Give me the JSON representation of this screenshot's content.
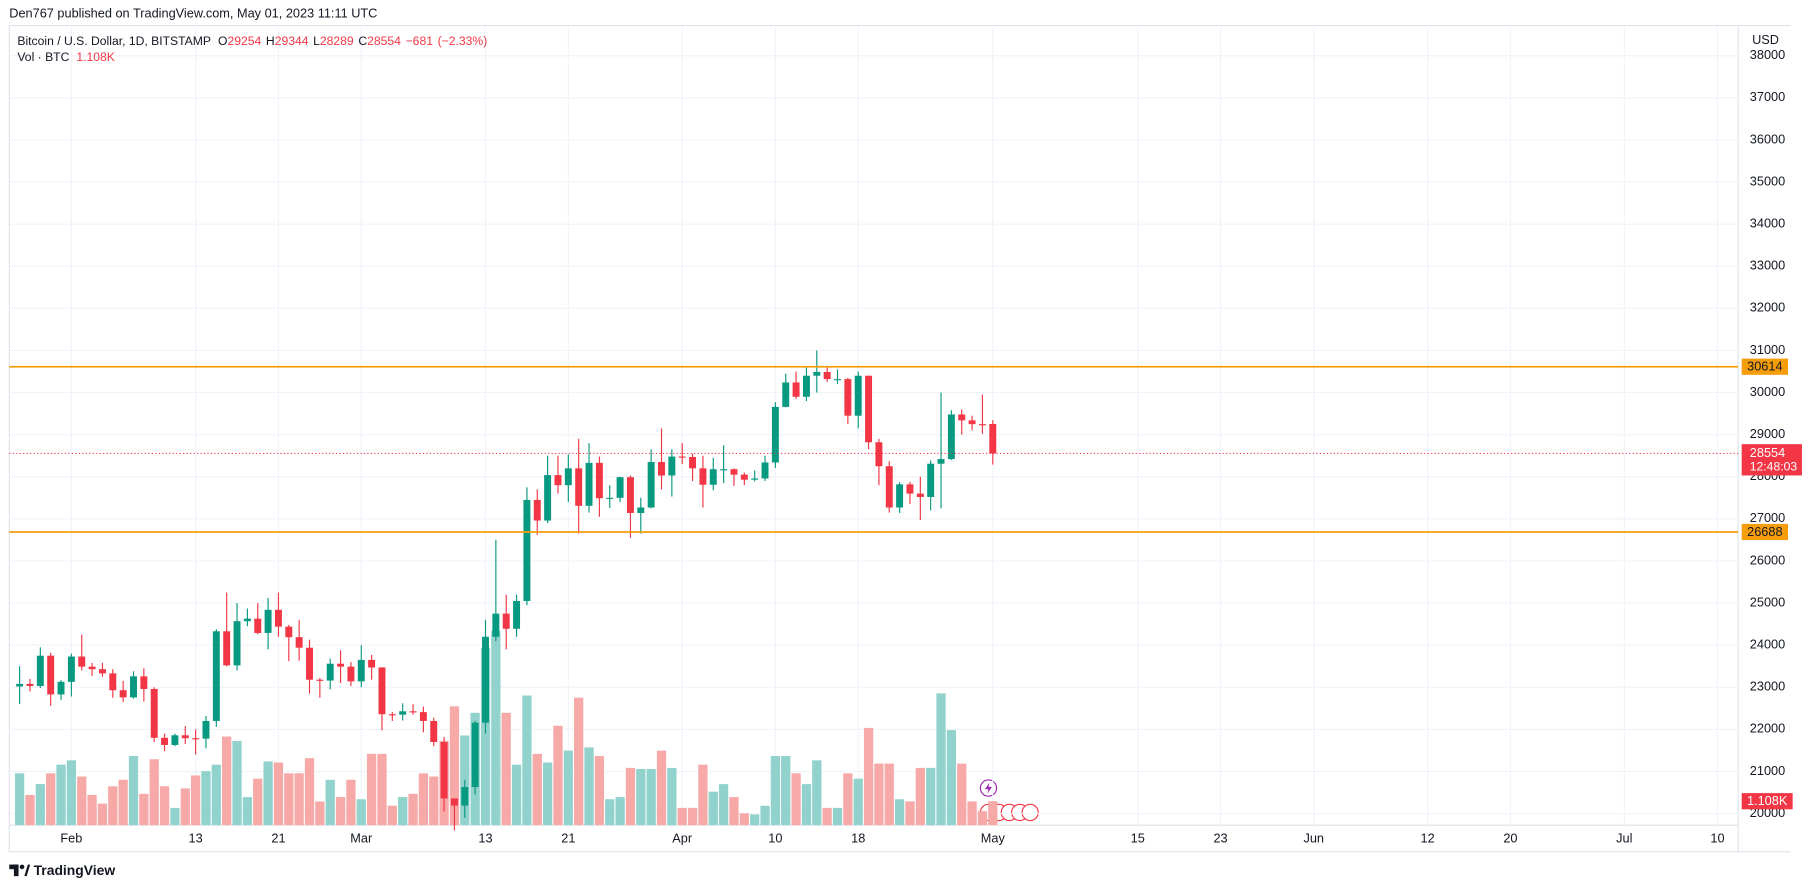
{
  "chart_data": {
    "type": "candlestick",
    "header": "Den767 published on TradingView.com, May 01, 2023 11:11 UTC",
    "title": "Bitcoin / U.S. Dollar, 1D, BITSTAMP",
    "legend_keys": [
      "O",
      "H",
      "L",
      "C"
    ],
    "change": {
      "value": -681,
      "label": "−681"
    },
    "change_pct": {
      "value": -2.33,
      "label": "(−2.33%)"
    },
    "countdown": "12:48:03",
    "y_unit": "USD",
    "footer": "TradingView",
    "up_color": "#089981",
    "down_color": "#f23645",
    "volume_up_color": "#92d2cc",
    "volume_down_color": "#f7a9a7",
    "grid": true,
    "x": [
      "2023-01-27",
      "2023-01-28",
      "2023-01-29",
      "2023-01-30",
      "2023-01-31",
      "2023-02-01",
      "2023-02-02",
      "2023-02-03",
      "2023-02-04",
      "2023-02-05",
      "2023-02-06",
      "2023-02-07",
      "2023-02-08",
      "2023-02-09",
      "2023-02-10",
      "2023-02-11",
      "2023-02-12",
      "2023-02-13",
      "2023-02-14",
      "2023-02-15",
      "2023-02-16",
      "2023-02-17",
      "2023-02-18",
      "2023-02-19",
      "2023-02-20",
      "2023-02-21",
      "2023-02-22",
      "2023-02-23",
      "2023-02-24",
      "2023-02-25",
      "2023-02-26",
      "2023-02-27",
      "2023-02-28",
      "2023-03-01",
      "2023-03-02",
      "2023-03-03",
      "2023-03-04",
      "2023-03-05",
      "2023-03-06",
      "2023-03-07",
      "2023-03-08",
      "2023-03-09",
      "2023-03-10",
      "2023-03-11",
      "2023-03-12",
      "2023-03-13",
      "2023-03-14",
      "2023-03-15",
      "2023-03-16",
      "2023-03-17",
      "2023-03-18",
      "2023-03-19",
      "2023-03-20",
      "2023-03-21",
      "2023-03-22",
      "2023-03-23",
      "2023-03-24",
      "2023-03-25",
      "2023-03-26",
      "2023-03-27",
      "2023-03-28",
      "2023-03-29",
      "2023-03-30",
      "2023-03-31",
      "2023-04-01",
      "2023-04-02",
      "2023-04-03",
      "2023-04-04",
      "2023-04-05",
      "2023-04-06",
      "2023-04-07",
      "2023-04-08",
      "2023-04-09",
      "2023-04-10",
      "2023-04-11",
      "2023-04-12",
      "2023-04-13",
      "2023-04-14",
      "2023-04-15",
      "2023-04-16",
      "2023-04-17",
      "2023-04-18",
      "2023-04-19",
      "2023-04-20",
      "2023-04-21",
      "2023-04-22",
      "2023-04-23",
      "2023-04-24",
      "2023-04-25",
      "2023-04-26",
      "2023-04-27",
      "2023-04-28",
      "2023-04-29",
      "2023-04-30",
      "2023-05-01"
    ],
    "open": [
      23020,
      23080,
      23030,
      23750,
      22830,
      23130,
      23730,
      23490,
      23430,
      23330,
      22930,
      22760,
      23260,
      22960,
      21800,
      21630,
      21860,
      21790,
      21780,
      22200,
      24330,
      23520,
      24570,
      24630,
      24290,
      24840,
      24440,
      24190,
      23940,
      23180,
      23160,
      23560,
      23490,
      23140,
      23650,
      23470,
      22360,
      22350,
      22430,
      22410,
      22200,
      21700,
      20360,
      20190,
      20630,
      22160,
      24200,
      24750,
      24390,
      25050,
      27450,
      26960,
      28040,
      27800,
      28200,
      27310,
      28330,
      27490,
      27500,
      27990,
      27140,
      27270,
      28350,
      28030,
      28480,
      28470,
      28200,
      27810,
      28180,
      28180,
      28050,
      27930,
      27960,
      28340,
      29660,
      30240,
      29900,
      30400,
      30490,
      30320,
      30320,
      29450,
      30400,
      28820,
      28250,
      27270,
      27820,
      27600,
      27520,
      28310,
      28420,
      29480,
      29340,
      29250,
      29254
    ],
    "high": [
      23500,
      23200,
      23950,
      23820,
      23170,
      23800,
      24250,
      23580,
      23580,
      23430,
      23150,
      23380,
      23450,
      23000,
      21900,
      21900,
      22080,
      22000,
      22320,
      24380,
      25250,
      25000,
      24870,
      25000,
      25120,
      25250,
      24480,
      24600,
      24130,
      23220,
      23680,
      23880,
      23600,
      24000,
      23770,
      23480,
      22410,
      22620,
      22600,
      22540,
      22280,
      21820,
      20360,
      20800,
      22200,
      24600,
      26500,
      25200,
      25200,
      27750,
      27700,
      28500,
      28500,
      28530,
      28900,
      28800,
      28480,
      27800,
      28000,
      28030,
      27500,
      28650,
      29150,
      28650,
      28800,
      28550,
      28500,
      28450,
      28750,
      28200,
      28100,
      28150,
      28500,
      29770,
      30450,
      30500,
      30600,
      31000,
      30600,
      30550,
      30350,
      30500,
      30400,
      28900,
      28370,
      27870,
      27880,
      28000,
      28390,
      30000,
      29580,
      29600,
      29450,
      29950,
      29344
    ],
    "low": [
      22600,
      22900,
      22980,
      22560,
      22700,
      22780,
      23400,
      23270,
      23250,
      22750,
      22650,
      22730,
      22660,
      21700,
      21480,
      21600,
      21650,
      21400,
      21550,
      22060,
      23500,
      23400,
      24450,
      24260,
      23900,
      24200,
      23620,
      23630,
      22850,
      22750,
      22950,
      23100,
      23030,
      23000,
      23180,
      21980,
      22200,
      22210,
      22350,
      21930,
      21600,
      20050,
      19600,
      19900,
      20450,
      21900,
      24100,
      23900,
      24200,
      24950,
      26620,
      26900,
      27600,
      27400,
      26650,
      27150,
      27050,
      27260,
      27400,
      26550,
      26650,
      27250,
      27700,
      27530,
      28300,
      27900,
      27270,
      27680,
      27850,
      27780,
      27800,
      27890,
      27900,
      28210,
      29650,
      29850,
      29800,
      30000,
      30250,
      30200,
      29250,
      29150,
      28650,
      27800,
      27150,
      27140,
      27350,
      26970,
      27200,
      27250,
      28400,
      29000,
      29100,
      29020,
      28289
    ],
    "close": [
      23080,
      23030,
      23750,
      22830,
      23130,
      23730,
      23490,
      23430,
      23330,
      22930,
      22760,
      23260,
      22960,
      21800,
      21630,
      21860,
      21790,
      21780,
      22200,
      24330,
      23520,
      24570,
      24630,
      24290,
      24840,
      24440,
      24190,
      23940,
      23180,
      23160,
      23560,
      23490,
      23140,
      23650,
      23470,
      22360,
      22350,
      22430,
      22410,
      22200,
      21700,
      20360,
      20190,
      20630,
      22160,
      24200,
      24750,
      24390,
      25050,
      27450,
      26960,
      28040,
      27800,
      28200,
      27310,
      28330,
      27490,
      27500,
      27990,
      27140,
      27270,
      28350,
      28030,
      28480,
      28470,
      28200,
      27810,
      28180,
      28180,
      28050,
      27930,
      27960,
      28340,
      29660,
      30240,
      29900,
      30400,
      30490,
      30320,
      30320,
      29450,
      30400,
      28820,
      28250,
      27270,
      27820,
      27600,
      27520,
      28310,
      28420,
      29480,
      29340,
      29250,
      29235,
      28554
    ],
    "volume": {
      "name": "Vol · BTC",
      "last_label": "1.108K",
      "values": [
        2400,
        1400,
        1900,
        2400,
        2800,
        3000,
        2250,
        1400,
        1000,
        1800,
        2100,
        3200,
        1450,
        3050,
        1800,
        800,
        1700,
        2300,
        2500,
        2800,
        4100,
        3900,
        1300,
        2150,
        2950,
        2900,
        2400,
        2400,
        3100,
        1100,
        2100,
        1300,
        2100,
        1200,
        3300,
        3300,
        900,
        1300,
        1450,
        2400,
        2250,
        3900,
        5500,
        4150,
        5200,
        8200,
        9000,
        5200,
        2800,
        6000,
        3300,
        2900,
        4600,
        3450,
        5900,
        3600,
        3200,
        1200,
        1300,
        2650,
        2600,
        2600,
        3450,
        2650,
        800,
        800,
        2800,
        1550,
        1900,
        1300,
        550,
        500,
        900,
        3200,
        3200,
        2400,
        1900,
        3000,
        800,
        800,
        2400,
        2150,
        4500,
        2850,
        2850,
        1200,
        1100,
        2650,
        2650,
        6100,
        4400,
        2850,
        1100,
        650,
        1108
      ]
    },
    "hlines": [
      {
        "value": 30614,
        "color": "#f59d0b"
      },
      {
        "value": 26688,
        "color": "#f59d0b"
      }
    ],
    "xlim": [
      "2023-01-26",
      "2023-07-12"
    ],
    "xticks": [
      {
        "value": "2023-02-01",
        "label": "Feb"
      },
      {
        "value": "2023-02-13",
        "label": "13"
      },
      {
        "value": "2023-02-21",
        "label": "21"
      },
      {
        "value": "2023-03-01",
        "label": "Mar"
      },
      {
        "value": "2023-03-13",
        "label": "13"
      },
      {
        "value": "2023-03-21",
        "label": "21"
      },
      {
        "value": "2023-04-01",
        "label": "Apr"
      },
      {
        "value": "2023-04-10",
        "label": "10"
      },
      {
        "value": "2023-04-18",
        "label": "18"
      },
      {
        "value": "2023-05-01",
        "label": "May"
      },
      {
        "value": "2023-05-15",
        "label": "15"
      },
      {
        "value": "2023-05-23",
        "label": "23"
      },
      {
        "value": "2023-06-01",
        "label": "Jun"
      },
      {
        "value": "2023-06-12",
        "label": "12"
      },
      {
        "value": "2023-06-20",
        "label": "20"
      },
      {
        "value": "2023-07-01",
        "label": "Jul"
      },
      {
        "value": "2023-07-10",
        "label": "10"
      }
    ],
    "ylim": [
      19725,
      38716
    ],
    "yticks": [
      20000,
      21000,
      22000,
      23000,
      24000,
      25000,
      26000,
      27000,
      28000,
      29000,
      30000,
      31000,
      32000,
      33000,
      34000,
      35000,
      36000,
      37000,
      38000
    ],
    "y2lim": [
      0,
      37000
    ]
  }
}
